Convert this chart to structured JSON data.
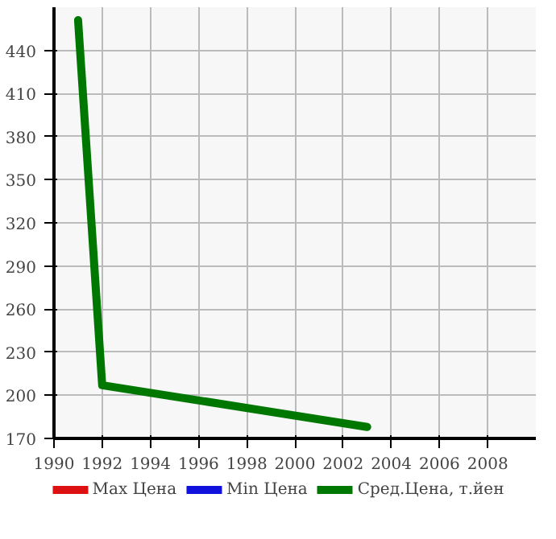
{
  "chart_data": {
    "type": "line",
    "x": [
      1991,
      1992,
      2003
    ],
    "series": [
      {
        "name": "Max Цена",
        "color": "#dd1111",
        "values": [
          null,
          null,
          null
        ]
      },
      {
        "name": "Min Цена",
        "color": "#1111dd",
        "values": [
          null,
          null,
          null
        ]
      },
      {
        "name": "Сред.Цена, т.йен",
        "color": "#007700",
        "values": [
          461,
          207,
          178
        ]
      }
    ],
    "xlim": [
      1990,
      2010
    ],
    "ylim": [
      170,
      470
    ],
    "xticks": [
      1990,
      1992,
      1994,
      1996,
      1998,
      2000,
      2002,
      2004,
      2006,
      2008
    ],
    "yticks": [
      170,
      200,
      230,
      260,
      290,
      320,
      350,
      380,
      410,
      440
    ],
    "grid": true,
    "legend": "bottom"
  }
}
